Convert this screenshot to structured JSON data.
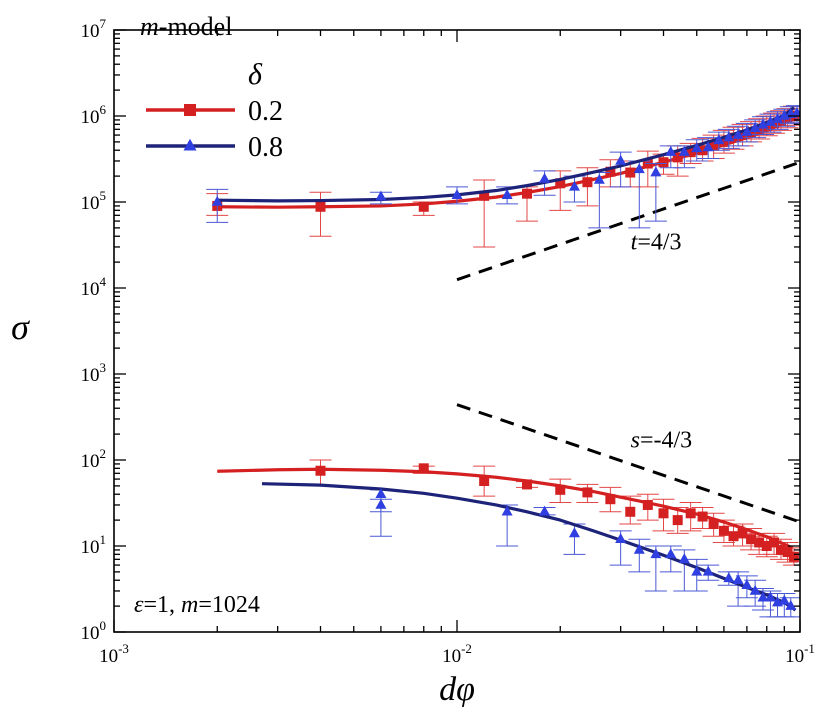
{
  "chart_data": {
    "type": "line",
    "xscale": "log",
    "yscale": "log",
    "xlim": [
      0.001,
      0.1
    ],
    "ylim": [
      1,
      10000000
    ],
    "xlabel": "dφ",
    "ylabel": "σ",
    "xticks": [
      {
        "mant": "10",
        "exp": "-3",
        "value": 0.001
      },
      {
        "mant": "10",
        "exp": "-2",
        "value": 0.01
      },
      {
        "mant": "10",
        "exp": "-1",
        "value": 0.1
      }
    ],
    "yticks": [
      {
        "mant": "10",
        "exp": "0",
        "value": 1
      },
      {
        "mant": "10",
        "exp": "1",
        "value": 10
      },
      {
        "mant": "10",
        "exp": "2",
        "value": 100
      },
      {
        "mant": "10",
        "exp": "3",
        "value": 1000
      },
      {
        "mant": "10",
        "exp": "4",
        "value": 10000
      },
      {
        "mant": "10",
        "exp": "5",
        "value": 100000
      },
      {
        "mant": "10",
        "exp": "6",
        "value": 1000000
      },
      {
        "mant": "10",
        "exp": "7",
        "value": 10000000
      }
    ],
    "model_label": {
      "italic": "m",
      "rest": "-model"
    },
    "params_label": {
      "eps_sym": "ε",
      "eps_val": "=1, ",
      "m_sym": "m",
      "m_val": "=1024"
    },
    "legend": {
      "title": "δ",
      "position": "top-left",
      "entries": [
        {
          "label": "0.2",
          "color": "#d42020",
          "marker": "square"
        },
        {
          "label": "0.8",
          "color": "#1e237a",
          "marker": "triangle"
        }
      ]
    },
    "annotations": [
      {
        "name": "t-exponent",
        "italic": "t",
        "text": "=4/3",
        "x": 0.03,
        "y": 28000
      },
      {
        "name": "s-exponent",
        "italic": "s",
        "text": "=-4/3",
        "x": 0.03,
        "y": 140
      }
    ],
    "guide_lines": [
      {
        "name": "t-guide-line",
        "x": [
          0.01,
          0.1
        ],
        "y": [
          12500,
          290000
        ]
      },
      {
        "name": "s-guide-line",
        "x": [
          0.01,
          0.1
        ],
        "y": [
          440,
          19
        ]
      }
    ],
    "series": [
      {
        "name": "0.2",
        "group": "upper",
        "color": "#d42020",
        "errcolor": "#e34747",
        "marker": "square",
        "curve_x": [
          0.002,
          0.003,
          0.004,
          0.006,
          0.008,
          0.01,
          0.013,
          0.016,
          0.02,
          0.025,
          0.03,
          0.04,
          0.05,
          0.06,
          0.07,
          0.08,
          0.09,
          0.096
        ],
        "curve_y": [
          88000,
          87000,
          88000,
          90000,
          95000,
          102000,
          114000,
          129000,
          151000,
          183000,
          215000,
          290000,
          370000,
          460000,
          560000,
          680000,
          830000,
          990000
        ],
        "points": [
          {
            "x": 0.002,
            "y": 90000,
            "lo": 70000,
            "hi": 125000
          },
          {
            "x": 0.004,
            "y": 88000,
            "lo": 40000,
            "hi": 130000
          },
          {
            "x": 0.008,
            "y": 88000,
            "lo": 70000,
            "hi": 100000
          },
          {
            "x": 0.012,
            "y": 118000,
            "lo": 30000,
            "hi": 180000
          },
          {
            "x": 0.016,
            "y": 125000,
            "lo": 60000,
            "hi": 150000
          },
          {
            "x": 0.02,
            "y": 165000,
            "lo": 80000,
            "hi": 230000
          },
          {
            "x": 0.024,
            "y": 170000,
            "lo": 90000,
            "hi": 250000
          },
          {
            "x": 0.028,
            "y": 225000,
            "lo": 150000,
            "hi": 310000
          },
          {
            "x": 0.032,
            "y": 220000,
            "lo": 150000,
            "hi": 300000
          },
          {
            "x": 0.036,
            "y": 280000,
            "lo": 150000,
            "hi": 390000
          },
          {
            "x": 0.04,
            "y": 290000,
            "lo": 210000,
            "hi": 360000
          },
          {
            "x": 0.044,
            "y": 330000,
            "lo": 200000,
            "hi": 450000
          },
          {
            "x": 0.048,
            "y": 380000,
            "lo": 280000,
            "hi": 480000
          },
          {
            "x": 0.052,
            "y": 400000,
            "lo": 300000,
            "hi": 550000
          },
          {
            "x": 0.056,
            "y": 450000,
            "lo": 320000,
            "hi": 600000
          },
          {
            "x": 0.06,
            "y": 500000,
            "lo": 370000,
            "hi": 680000
          },
          {
            "x": 0.064,
            "y": 560000,
            "lo": 410000,
            "hi": 740000
          },
          {
            "x": 0.068,
            "y": 600000,
            "lo": 450000,
            "hi": 800000
          },
          {
            "x": 0.072,
            "y": 650000,
            "lo": 500000,
            "hi": 860000
          },
          {
            "x": 0.076,
            "y": 700000,
            "lo": 540000,
            "hi": 930000
          },
          {
            "x": 0.08,
            "y": 760000,
            "lo": 590000,
            "hi": 1000000
          },
          {
            "x": 0.084,
            "y": 820000,
            "lo": 630000,
            "hi": 1080000
          },
          {
            "x": 0.088,
            "y": 880000,
            "lo": 680000,
            "hi": 1150000
          },
          {
            "x": 0.092,
            "y": 950000,
            "lo": 730000,
            "hi": 1220000
          },
          {
            "x": 0.096,
            "y": 1000000,
            "lo": 780000,
            "hi": 1300000
          }
        ]
      },
      {
        "name": "0.8",
        "group": "upper",
        "color": "#1e237a",
        "errcolor": "#4a58d6",
        "marker": "triangle",
        "curve_x": [
          0.002,
          0.003,
          0.004,
          0.006,
          0.008,
          0.01,
          0.013,
          0.016,
          0.02,
          0.025,
          0.03,
          0.04,
          0.05,
          0.06,
          0.07,
          0.08,
          0.09,
          0.096
        ],
        "curve_y": [
          105000,
          103000,
          104000,
          107000,
          113000,
          121000,
          136000,
          155000,
          183000,
          222000,
          263000,
          355000,
          455000,
          565000,
          690000,
          840000,
          1020000,
          1250000
        ],
        "points": [
          {
            "x": 0.002,
            "y": 100000,
            "lo": 58000,
            "hi": 140000
          },
          {
            "x": 0.006,
            "y": 115000,
            "lo": 95000,
            "hi": 130000
          },
          {
            "x": 0.01,
            "y": 120000,
            "lo": 95000,
            "hi": 150000
          },
          {
            "x": 0.014,
            "y": 120000,
            "lo": 95000,
            "hi": 150000
          },
          {
            "x": 0.018,
            "y": 185000,
            "lo": 120000,
            "hi": 230000
          },
          {
            "x": 0.022,
            "y": 150000,
            "lo": 100000,
            "hi": 200000
          },
          {
            "x": 0.026,
            "y": 180000,
            "lo": 50000,
            "hi": 220000
          },
          {
            "x": 0.03,
            "y": 300000,
            "lo": 150000,
            "hi": 380000
          },
          {
            "x": 0.034,
            "y": 240000,
            "lo": 50000,
            "hi": 300000
          },
          {
            "x": 0.038,
            "y": 220000,
            "lo": 60000,
            "hi": 280000
          },
          {
            "x": 0.042,
            "y": 380000,
            "lo": 250000,
            "hi": 450000
          },
          {
            "x": 0.046,
            "y": 380000,
            "lo": 250000,
            "hi": 450000
          },
          {
            "x": 0.05,
            "y": 420000,
            "lo": 300000,
            "hi": 530000
          },
          {
            "x": 0.054,
            "y": 430000,
            "lo": 320000,
            "hi": 560000
          },
          {
            "x": 0.058,
            "y": 520000,
            "lo": 400000,
            "hi": 650000
          },
          {
            "x": 0.062,
            "y": 560000,
            "lo": 420000,
            "hi": 700000
          },
          {
            "x": 0.066,
            "y": 600000,
            "lo": 450000,
            "hi": 760000
          },
          {
            "x": 0.07,
            "y": 650000,
            "lo": 500000,
            "hi": 820000
          },
          {
            "x": 0.074,
            "y": 720000,
            "lo": 560000,
            "hi": 900000
          },
          {
            "x": 0.078,
            "y": 790000,
            "lo": 610000,
            "hi": 980000
          },
          {
            "x": 0.082,
            "y": 850000,
            "lo": 650000,
            "hi": 1050000
          },
          {
            "x": 0.086,
            "y": 920000,
            "lo": 700000,
            "hi": 1120000
          },
          {
            "x": 0.09,
            "y": 1000000,
            "lo": 760000,
            "hi": 1200000
          },
          {
            "x": 0.094,
            "y": 1050000,
            "lo": 820000,
            "hi": 1280000
          },
          {
            "x": 0.098,
            "y": 1080000,
            "lo": 850000,
            "hi": 1320000
          }
        ]
      },
      {
        "name": "0.2",
        "group": "lower",
        "color": "#d42020",
        "errcolor": "#e34747",
        "marker": "square",
        "curve_x": [
          0.002,
          0.003,
          0.004,
          0.006,
          0.008,
          0.01,
          0.013,
          0.016,
          0.02,
          0.025,
          0.03,
          0.04,
          0.05,
          0.06,
          0.07,
          0.08,
          0.09,
          0.095
        ],
        "curve_y": [
          74,
          77,
          78,
          76,
          73,
          69,
          63,
          57,
          50,
          43,
          37,
          29,
          23.5,
          19,
          15.5,
          12.8,
          10.5,
          9.5
        ],
        "points": [
          {
            "x": 0.004,
            "y": 75,
            "lo": 50,
            "hi": 100
          },
          {
            "x": 0.008,
            "y": 80,
            "lo": 70,
            "hi": 85
          },
          {
            "x": 0.012,
            "y": 57,
            "lo": 38,
            "hi": 85
          },
          {
            "x": 0.016,
            "y": 52,
            "lo": 48,
            "hi": 56
          },
          {
            "x": 0.02,
            "y": 45,
            "lo": 32,
            "hi": 60
          },
          {
            "x": 0.024,
            "y": 42,
            "lo": 32,
            "hi": 52
          },
          {
            "x": 0.028,
            "y": 35,
            "lo": 25,
            "hi": 48
          },
          {
            "x": 0.032,
            "y": 25,
            "lo": 18,
            "hi": 38
          },
          {
            "x": 0.036,
            "y": 30,
            "lo": 20,
            "hi": 40
          },
          {
            "x": 0.04,
            "y": 24,
            "lo": 15,
            "hi": 35
          },
          {
            "x": 0.044,
            "y": 20,
            "lo": 14,
            "hi": 28
          },
          {
            "x": 0.048,
            "y": 24,
            "lo": 15,
            "hi": 32
          },
          {
            "x": 0.052,
            "y": 22,
            "lo": 16,
            "hi": 28
          },
          {
            "x": 0.056,
            "y": 18,
            "lo": 13,
            "hi": 24
          },
          {
            "x": 0.06,
            "y": 15,
            "lo": 11,
            "hi": 20
          },
          {
            "x": 0.064,
            "y": 13,
            "lo": 10,
            "hi": 17
          },
          {
            "x": 0.068,
            "y": 14,
            "lo": 10,
            "hi": 18
          },
          {
            "x": 0.072,
            "y": 12,
            "lo": 9,
            "hi": 16
          },
          {
            "x": 0.076,
            "y": 11,
            "lo": 8,
            "hi": 14
          },
          {
            "x": 0.08,
            "y": 10,
            "lo": 7.5,
            "hi": 13
          },
          {
            "x": 0.084,
            "y": 11,
            "lo": 8,
            "hi": 14
          },
          {
            "x": 0.088,
            "y": 9,
            "lo": 7,
            "hi": 12
          },
          {
            "x": 0.092,
            "y": 8.5,
            "lo": 6.5,
            "hi": 11
          },
          {
            "x": 0.096,
            "y": 7.5,
            "lo": 6,
            "hi": 9.5
          }
        ]
      },
      {
        "name": "0.8",
        "group": "lower",
        "color": "#1e237a",
        "errcolor": "#4a58d6",
        "marker": "triangle",
        "curve_x": [
          0.0027,
          0.004,
          0.006,
          0.008,
          0.01,
          0.013,
          0.016,
          0.02,
          0.025,
          0.03,
          0.04,
          0.05,
          0.06,
          0.07,
          0.08,
          0.09,
          0.097
        ],
        "curve_y": [
          53,
          51,
          46,
          41,
          36,
          30,
          25,
          20,
          15,
          11.7,
          7.8,
          5.6,
          4.2,
          3.3,
          2.7,
          2.2,
          1.8
        ],
        "points": [
          {
            "x": 0.006,
            "y": 40,
            "lo": 13,
            "hi": 45
          },
          {
            "x": 0.006,
            "y": 30,
            "lo": 25,
            "hi": 35
          },
          {
            "x": 0.014,
            "y": 25,
            "lo": 10,
            "hi": 30
          },
          {
            "x": 0.018,
            "y": 25,
            "lo": 23,
            "hi": 28
          },
          {
            "x": 0.022,
            "y": 14,
            "lo": 8,
            "hi": 18
          },
          {
            "x": 0.03,
            "y": 12,
            "lo": 6,
            "hi": 15
          },
          {
            "x": 0.034,
            "y": 9,
            "lo": 5,
            "hi": 12
          },
          {
            "x": 0.038,
            "y": 8,
            "lo": 3,
            "hi": 10
          },
          {
            "x": 0.042,
            "y": 8,
            "lo": 5,
            "hi": 10
          },
          {
            "x": 0.046,
            "y": 7,
            "lo": 3,
            "hi": 9
          },
          {
            "x": 0.05,
            "y": 5,
            "lo": 3,
            "hi": 7
          },
          {
            "x": 0.054,
            "y": 5,
            "lo": 4,
            "hi": 6
          },
          {
            "x": 0.062,
            "y": 4.2,
            "lo": 3.5,
            "hi": 5
          },
          {
            "x": 0.066,
            "y": 4,
            "lo": 2,
            "hi": 5
          },
          {
            "x": 0.07,
            "y": 3.5,
            "lo": 2.5,
            "hi": 4.5
          },
          {
            "x": 0.074,
            "y": 3,
            "lo": 2,
            "hi": 4
          },
          {
            "x": 0.078,
            "y": 2.5,
            "lo": 1.8,
            "hi": 3.2
          },
          {
            "x": 0.082,
            "y": 2.5,
            "lo": 1.5,
            "hi": 3
          },
          {
            "x": 0.086,
            "y": 2.2,
            "lo": 1.5,
            "hi": 2.8
          },
          {
            "x": 0.09,
            "y": 2.3,
            "lo": 1.5,
            "hi": 2.8
          },
          {
            "x": 0.094,
            "y": 2,
            "lo": 1.5,
            "hi": 2.5
          }
        ]
      }
    ]
  }
}
